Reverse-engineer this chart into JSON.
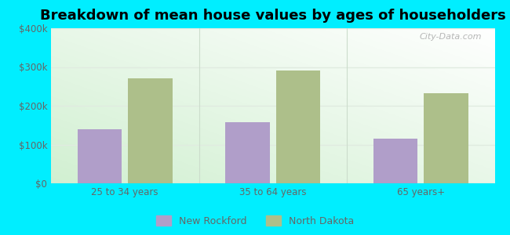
{
  "title": "Breakdown of mean house values by ages of householders",
  "categories": [
    "25 to 34 years",
    "35 to 64 years",
    "65 years+"
  ],
  "new_rockford_values": [
    140000,
    158000,
    115000
  ],
  "north_dakota_values": [
    270000,
    290000,
    232000
  ],
  "new_rockford_color": "#b09ec9",
  "north_dakota_color": "#adbf8a",
  "background_outer": "#00eeff",
  "ylim": [
    0,
    400000
  ],
  "yticks": [
    0,
    100000,
    200000,
    300000,
    400000
  ],
  "ytick_labels": [
    "$0",
    "$100k",
    "$200k",
    "$300k",
    "$400k"
  ],
  "bar_width": 0.3,
  "title_fontsize": 13,
  "legend_labels": [
    "New Rockford",
    "North Dakota"
  ],
  "watermark": "City-Data.com",
  "grid_color": "#e0ebe0",
  "tick_color": "#666666"
}
